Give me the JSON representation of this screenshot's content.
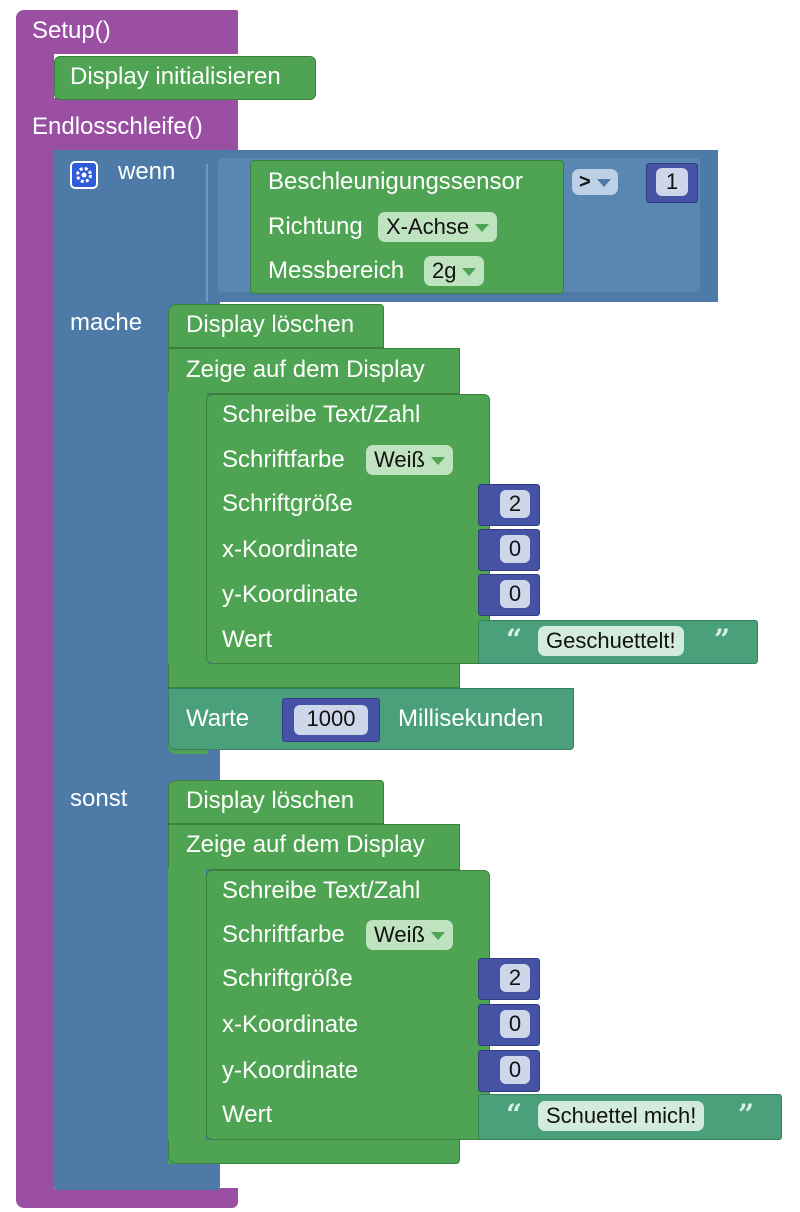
{
  "setup": {
    "label": "Setup()"
  },
  "display_init": {
    "label": "Display initialisieren"
  },
  "loop": {
    "label": "Endlosschleife()"
  },
  "if_block": {
    "if_label": "wenn",
    "do_label": "mache",
    "else_label": "sonst",
    "condition": {
      "operator": ">",
      "compare_value": "1",
      "sensor": {
        "title": "Beschleunigungssensor",
        "direction_label": "Richtung",
        "direction_value": "X-Achse",
        "range_label": "Messbereich",
        "range_value": "2g"
      }
    }
  },
  "then_branch": {
    "clear_label": "Display löschen",
    "show_label": "Zeige auf dem Display",
    "write": {
      "title": "Schreibe Text/Zahl",
      "color_label": "Schriftfarbe",
      "color_value": "Weiß",
      "size_label": "Schriftgröße",
      "size_value": "2",
      "x_label": "x-Koordinate",
      "x_value": "0",
      "y_label": "y-Koordinate",
      "y_value": "0",
      "value_label": "Wert",
      "text_value": "Geschuettelt!"
    },
    "wait": {
      "label": "Warte",
      "value": "1000",
      "unit": "Millisekunden"
    }
  },
  "else_branch": {
    "clear_label": "Display löschen",
    "show_label": "Zeige auf dem Display",
    "write": {
      "title": "Schreibe Text/Zahl",
      "color_label": "Schriftfarbe",
      "color_value": "Weiß",
      "size_label": "Schriftgröße",
      "size_value": "2",
      "x_label": "x-Koordinate",
      "x_value": "0",
      "y_label": "y-Koordinate",
      "y_value": "0",
      "value_label": "Wert",
      "text_value": "Schuettel mich!"
    }
  },
  "colors": {
    "procedure": "#9a4fa3",
    "control": "#4d7aa6",
    "display": "#4ea452",
    "text": "#4aa07b",
    "math": "#4652a3"
  },
  "icons": [
    "gear-icon",
    "dropdown-arrow-icon",
    "open-quote-icon",
    "close-quote-icon"
  ]
}
